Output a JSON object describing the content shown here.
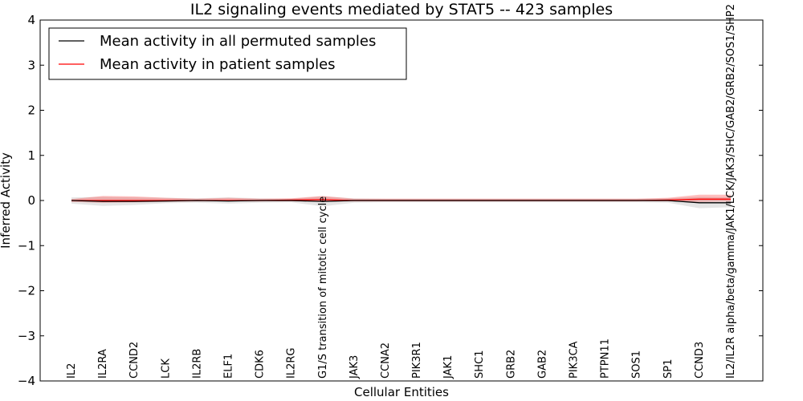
{
  "chart_data": {
    "type": "line",
    "title": "IL2 signaling events mediated by STAT5 -- 423 samples",
    "xlabel": "Cellular Entities",
    "ylabel": "Inferred Activity",
    "ylim": [
      -4,
      4
    ],
    "yticks": [
      "−4",
      "−3",
      "−2",
      "−1",
      "0",
      "1",
      "2",
      "3",
      "4"
    ],
    "categories": [
      "IL2",
      "IL2RA",
      "CCND2",
      "LCK",
      "IL2RB",
      "ELF1",
      "CDK6",
      "IL2RG",
      "G1/S transition of mitotic cell cycle",
      "JAK3",
      "CCNA2",
      "PIK3R1",
      "JAK1",
      "SHC1",
      "GRB2",
      "GAB2",
      "PIK3CA",
      "PTPN11",
      "SOS1",
      "SP1",
      "CCND3",
      "IL2/IL2R alpha/beta/gamma/JAK1/LCK/JAK3/SHC/GAB2/GRB2/SOS1/SHP2"
    ],
    "legend": {
      "position": "top-left",
      "entries": [
        "Mean activity in all permuted samples",
        "Mean activity in patient samples"
      ]
    },
    "series": [
      {
        "name": "Mean activity in all permuted samples",
        "color": "#000000",
        "values": [
          0.0,
          -0.02,
          -0.02,
          -0.01,
          0.0,
          -0.01,
          0.0,
          0.0,
          -0.02,
          0.0,
          0.0,
          0.0,
          0.0,
          0.0,
          0.0,
          0.0,
          0.0,
          0.0,
          0.0,
          0.0,
          -0.05,
          -0.05
        ],
        "band_low": [
          -0.07,
          -0.12,
          -0.1,
          -0.06,
          -0.05,
          -0.07,
          -0.05,
          -0.04,
          -0.13,
          -0.05,
          -0.04,
          -0.04,
          -0.04,
          -0.04,
          -0.04,
          -0.04,
          -0.04,
          -0.04,
          -0.04,
          -0.05,
          -0.17,
          -0.15
        ],
        "band_high": [
          0.07,
          0.08,
          0.07,
          0.06,
          0.05,
          0.07,
          0.05,
          0.04,
          0.09,
          0.05,
          0.04,
          0.04,
          0.04,
          0.04,
          0.04,
          0.04,
          0.04,
          0.04,
          0.04,
          0.05,
          0.08,
          0.07
        ]
      },
      {
        "name": "Mean activity in patient samples",
        "color": "#ff0000",
        "values": [
          0.0,
          0.0,
          0.0,
          0.0,
          0.0,
          0.0,
          0.0,
          0.01,
          0.02,
          0.0,
          0.0,
          0.0,
          0.0,
          0.0,
          0.0,
          0.0,
          0.0,
          0.0,
          0.0,
          0.01,
          0.03,
          0.03
        ],
        "band_low": [
          -0.03,
          -0.05,
          -0.04,
          -0.03,
          -0.02,
          -0.02,
          -0.02,
          -0.02,
          -0.03,
          -0.02,
          -0.02,
          -0.02,
          -0.02,
          -0.02,
          -0.02,
          -0.02,
          -0.02,
          -0.02,
          -0.02,
          -0.02,
          -0.03,
          -0.02
        ],
        "band_high": [
          0.03,
          0.1,
          0.09,
          0.06,
          0.04,
          0.06,
          0.04,
          0.05,
          0.1,
          0.04,
          0.04,
          0.04,
          0.04,
          0.04,
          0.04,
          0.04,
          0.04,
          0.04,
          0.04,
          0.06,
          0.13,
          0.13
        ]
      }
    ]
  }
}
